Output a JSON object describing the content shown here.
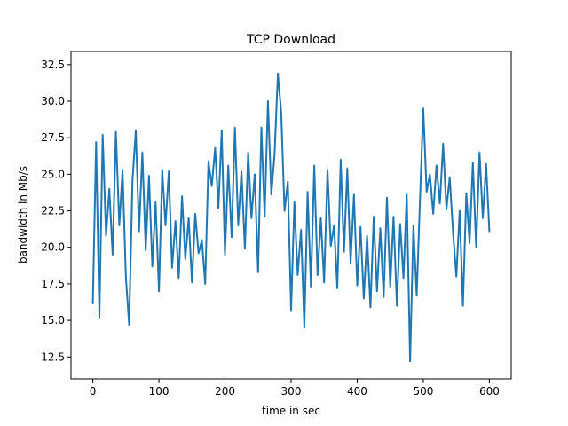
{
  "chart_data": {
    "type": "line",
    "title": "TCP Download",
    "xlabel": "time in sec",
    "ylabel": "bandwidth in Mb/s",
    "xlim": [
      -33,
      633
    ],
    "ylim": [
      11.0,
      33.4
    ],
    "x_ticks": [
      0,
      100,
      200,
      300,
      400,
      500,
      600
    ],
    "y_ticks": [
      12.5,
      15.0,
      17.5,
      20.0,
      22.5,
      25.0,
      27.5,
      30.0,
      32.5
    ],
    "x_tick_labels": [
      "0",
      "100",
      "200",
      "300",
      "400",
      "500",
      "600"
    ],
    "y_tick_labels": [
      "12.5",
      "15.0",
      "17.5",
      "20.0",
      "22.5",
      "25.0",
      "27.5",
      "30.0",
      "32.5"
    ],
    "grid": false,
    "series_color": "#1f77b4",
    "series": [
      {
        "x": [
          0,
          5,
          10,
          15,
          20,
          25,
          30,
          35,
          40,
          45,
          50,
          55,
          60,
          65,
          70,
          75,
          80,
          85,
          90,
          95,
          100,
          105,
          110,
          115,
          120,
          125,
          130,
          135,
          140,
          145,
          150,
          155,
          160,
          165,
          170,
          175,
          180,
          185,
          190,
          195,
          200,
          205,
          210,
          215,
          220,
          225,
          230,
          235,
          240,
          245,
          250,
          255,
          260,
          265,
          270,
          275,
          280,
          285,
          290,
          295,
          300,
          305,
          310,
          315,
          320,
          325,
          330,
          335,
          340,
          345,
          350,
          355,
          360,
          365,
          370,
          375,
          380,
          385,
          390,
          395,
          400,
          405,
          410,
          415,
          420,
          425,
          430,
          435,
          440,
          445,
          450,
          455,
          460,
          465,
          470,
          475,
          480,
          485,
          490,
          495,
          500,
          505,
          510,
          515,
          520,
          525,
          530,
          535,
          540,
          545,
          550,
          555,
          560,
          565,
          570,
          575,
          580,
          585,
          590,
          595,
          600
        ],
        "values": [
          16.2,
          27.2,
          15.2,
          27.7,
          20.8,
          24.0,
          19.5,
          27.9,
          21.5,
          25.3,
          18.0,
          14.7,
          24.6,
          28.0,
          21.1,
          26.5,
          19.8,
          24.9,
          18.7,
          23.1,
          17.0,
          25.3,
          21.5,
          25.2,
          18.6,
          21.8,
          17.9,
          23.5,
          19.2,
          22.0,
          17.6,
          22.3,
          19.6,
          20.5,
          17.5,
          25.9,
          24.2,
          26.8,
          22.7,
          28.0,
          19.5,
          25.6,
          20.7,
          28.2,
          21.5,
          25.2,
          19.9,
          26.5,
          22.0,
          25.0,
          18.3,
          28.2,
          22.1,
          30.0,
          23.6,
          26.4,
          31.9,
          29.3,
          22.5,
          24.5,
          15.7,
          23.1,
          18.1,
          21.2,
          14.5,
          23.8,
          17.3,
          25.6,
          18.1,
          22.0,
          17.6,
          25.3,
          20.1,
          21.5,
          17.2,
          26.0,
          19.7,
          25.4,
          18.9,
          23.6,
          17.4,
          21.4,
          16.5,
          20.8,
          15.9,
          22.1,
          17.0,
          21.3,
          16.6,
          23.4,
          17.3,
          22.1,
          16.0,
          21.6,
          17.9,
          23.6,
          12.2,
          21.5,
          16.7,
          23.2,
          29.5,
          23.8,
          25.0,
          22.3,
          25.6,
          23.0,
          27.1,
          22.6,
          24.8,
          21.0,
          18.0,
          22.5,
          16.0,
          23.7,
          20.3,
          25.8,
          20.0,
          26.5,
          22.0,
          25.7,
          21.1
        ]
      }
    ]
  }
}
